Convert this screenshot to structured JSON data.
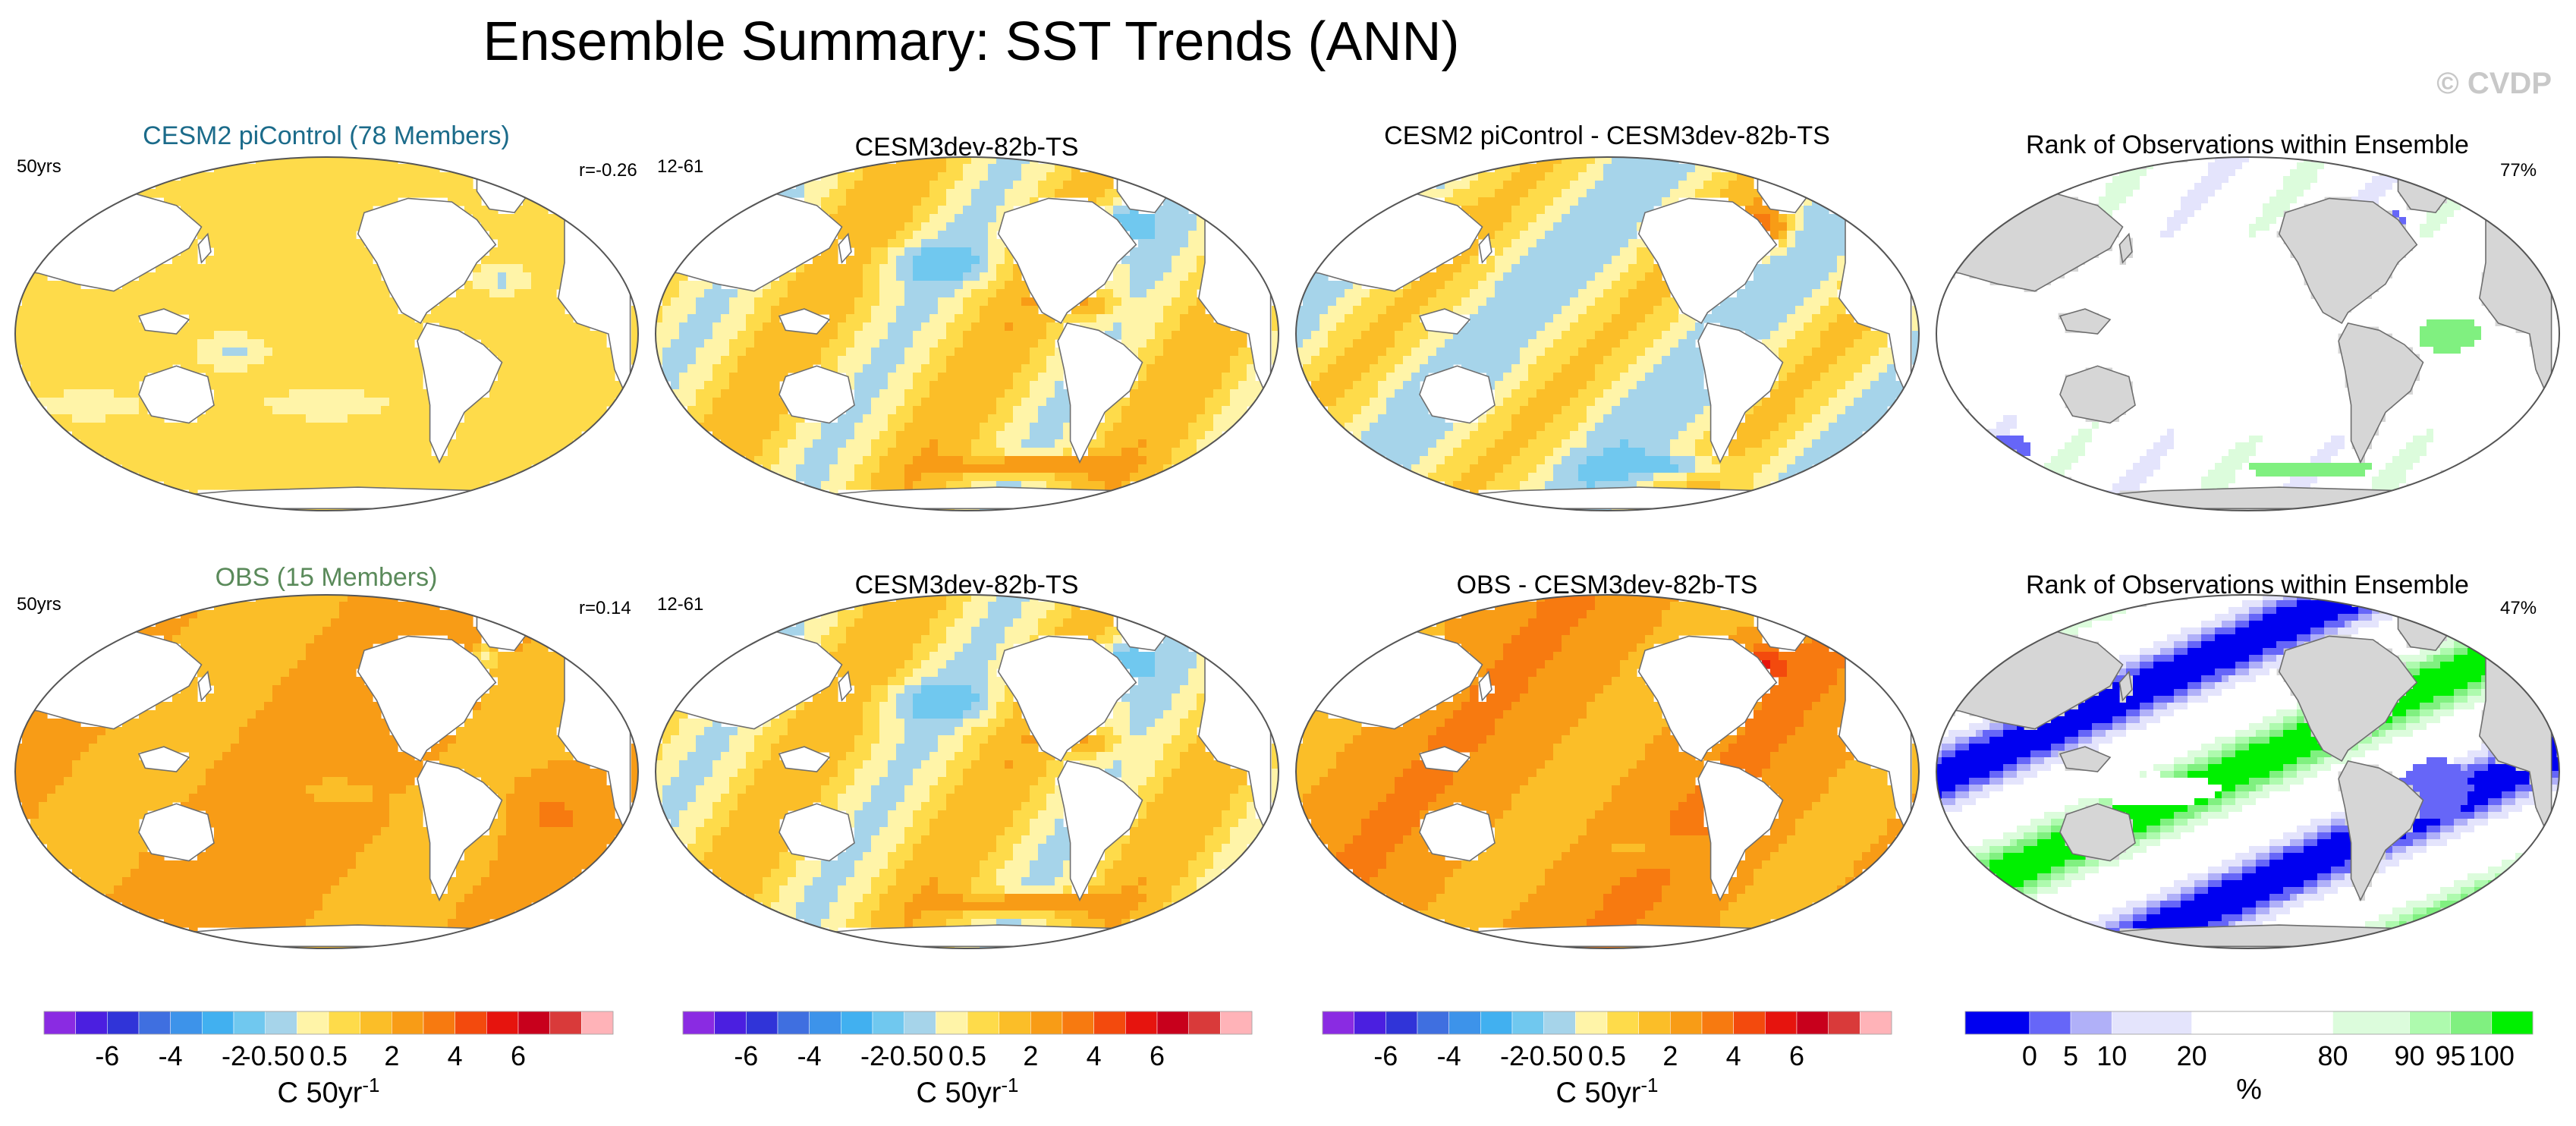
{
  "title": "Ensemble Summary: SST Trends (ANN)",
  "watermark": "© CVDP",
  "panels": [
    {
      "title": "CESM2 piControl (78 Members)",
      "title_color": "#1b6b8a",
      "left_label": "50yrs",
      "right_label": "r=-0.26",
      "kind": "trend",
      "pattern": "model_mean"
    },
    {
      "title": "CESM3dev-82b-TS",
      "title_color": "#000000",
      "left_label": "12-61",
      "right_label": "",
      "kind": "trend",
      "pattern": "case"
    },
    {
      "title": "CESM2 piControl - CESM3dev-82b-TS",
      "title_color": "#000000",
      "left_label": "",
      "right_label": "",
      "kind": "trend",
      "pattern": "diff1"
    },
    {
      "title": "Rank of Observations within Ensemble",
      "title_color": "#000000",
      "left_label": "",
      "right_label": "77%",
      "kind": "rank",
      "pattern": "rank1"
    },
    {
      "title": "OBS (15 Members)",
      "title_color": "#5a8a5a",
      "left_label": "50yrs",
      "right_label": "r=0.14",
      "kind": "trend",
      "pattern": "obs"
    },
    {
      "title": "CESM3dev-82b-TS",
      "title_color": "#000000",
      "left_label": "12-61",
      "right_label": "",
      "kind": "trend",
      "pattern": "case"
    },
    {
      "title": "OBS - CESM3dev-82b-TS",
      "title_color": "#000000",
      "left_label": "",
      "right_label": "",
      "kind": "trend",
      "pattern": "diff2"
    },
    {
      "title": "Rank of Observations within Ensemble",
      "title_color": "#000000",
      "left_label": "",
      "right_label": "47%",
      "kind": "rank",
      "pattern": "rank2"
    }
  ],
  "colorbars": [
    {
      "kind": "trend",
      "tick_labels": [
        "-6",
        "-4",
        "-2",
        "-0.5",
        "0",
        "0.5",
        "2",
        "4",
        "6"
      ],
      "unit_label": "C 50yr",
      "unit_sup": "-1"
    },
    {
      "kind": "trend",
      "tick_labels": [
        "-6",
        "-4",
        "-2",
        "-0.5",
        "0",
        "0.5",
        "2",
        "4",
        "6"
      ],
      "unit_label": "C 50yr",
      "unit_sup": "-1"
    },
    {
      "kind": "trend",
      "tick_labels": [
        "-6",
        "-4",
        "-2",
        "-0.5",
        "0",
        "0.5",
        "2",
        "4",
        "6"
      ],
      "unit_label": "C 50yr",
      "unit_sup": "-1"
    },
    {
      "kind": "rank",
      "tick_labels": [
        "0",
        "5",
        "10",
        "20",
        "80",
        "90",
        "95",
        "100"
      ],
      "unit_label": "%",
      "unit_sup": ""
    }
  ],
  "colors": {
    "trend": [
      "#8a2be2",
      "#4b1fe0",
      "#3034d8",
      "#3f6fe0",
      "#3d93ea",
      "#41b0f0",
      "#70c8ef",
      "#a6d4ea",
      "#fff4a8",
      "#fedb4a",
      "#fbbe28",
      "#f89c16",
      "#f77a10",
      "#f34a0d",
      "#e6140e",
      "#c8001c",
      "#d93a3a",
      "#ffb3b8"
    ],
    "rank": [
      "#0000f0",
      "#6666f8",
      "#b0b0f8",
      "#e4e4fc",
      "#ffffff",
      "#dcfcdc",
      "#aefaae",
      "#80f080",
      "#00f000"
    ],
    "land": "#ffffff",
    "rank_land": "#d6d6d6",
    "coast": "#6e6e6e"
  },
  "chart_data": {
    "type": "heatmap",
    "title": "Ensemble Summary: SST Trends (ANN)",
    "trend_levels": [
      -8,
      -6,
      -5,
      -4,
      -3,
      -2,
      -1,
      -0.5,
      0,
      0.5,
      1,
      2,
      3,
      4,
      5,
      6,
      7
    ],
    "rank_levels": [
      0,
      5,
      10,
      20,
      80,
      90,
      95,
      100
    ],
    "unit": "C 50yr-1",
    "maps": [
      {
        "panel": "CESM2 piControl (78 Members)",
        "pattern_correlation": -0.26
      },
      {
        "panel": "OBS (15 Members)",
        "pattern_correlation": 0.14
      },
      {
        "panel": "Rank of Observations within Ensemble (top)",
        "percent_within": 77
      },
      {
        "panel": "Rank of Observations within Ensemble (bottom)",
        "percent_within": 47
      }
    ]
  }
}
